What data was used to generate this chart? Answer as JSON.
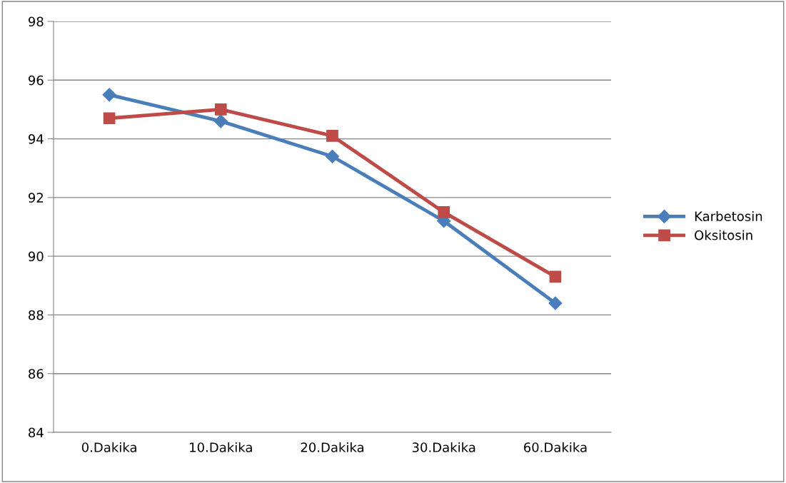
{
  "chart_data": {
    "type": "line",
    "categories": [
      "0.Dakika",
      "10.Dakika",
      "20.Dakika",
      "30.Dakika",
      "60.Dakika"
    ],
    "series": [
      {
        "name": "Karbetosin",
        "color": "#4a7ebb",
        "marker": "diamond",
        "values": [
          95.5,
          94.6,
          93.4,
          91.2,
          88.4
        ]
      },
      {
        "name": "Oksitosin",
        "color": "#be4b48",
        "marker": "square",
        "values": [
          94.7,
          95.0,
          94.1,
          91.5,
          89.3
        ]
      }
    ],
    "ylim": [
      84,
      98
    ],
    "yticks": [
      84,
      86,
      88,
      90,
      92,
      94,
      96,
      98
    ],
    "grid": "y",
    "legend": "right",
    "line_style": "solid"
  }
}
